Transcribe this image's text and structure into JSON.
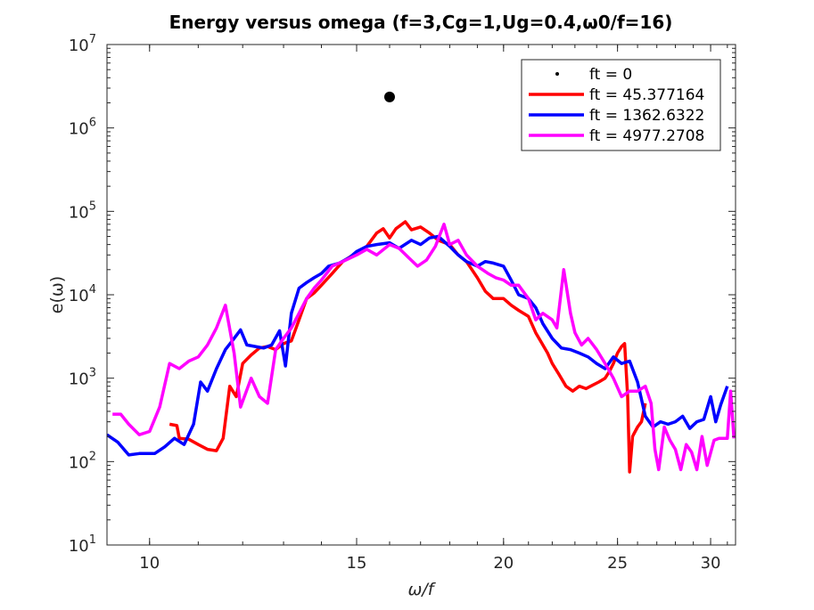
{
  "chart_data": {
    "type": "line",
    "title": "Energy versus omega (f=3,Cg=1,Ug=0.4,ω0/f=16)",
    "xlabel": "ω/f",
    "ylabel": "e(ω)",
    "xscale": "log",
    "yscale": "log",
    "xlim": [
      9.2,
      31.5
    ],
    "ylim": [
      10,
      10000000
    ],
    "xticks": [
      10,
      15,
      20,
      25,
      30
    ],
    "yticks": [
      {
        "value": 10,
        "base": "10",
        "exp": "1"
      },
      {
        "value": 100,
        "base": "10",
        "exp": "2"
      },
      {
        "value": 1000,
        "base": "10",
        "exp": "3"
      },
      {
        "value": 10000,
        "base": "10",
        "exp": "4"
      },
      {
        "value": 100000,
        "base": "10",
        "exp": "5"
      },
      {
        "value": 1000000,
        "base": "10",
        "exp": "6"
      },
      {
        "value": 10000000,
        "base": "10",
        "exp": "7"
      }
    ],
    "legend_position": "top-right",
    "grid": false,
    "series": [
      {
        "name": "ft = 0",
        "color": "#000000",
        "style": "point",
        "points": [
          [
            16.0,
            2350000
          ]
        ]
      },
      {
        "name": "ft = 45.377164",
        "color": "#ff0000",
        "style": "line",
        "points": [
          [
            10.4,
            280
          ],
          [
            10.55,
            270
          ],
          [
            10.6,
            190
          ],
          [
            10.8,
            185
          ],
          [
            11.0,
            160
          ],
          [
            11.2,
            140
          ],
          [
            11.4,
            135
          ],
          [
            11.55,
            190
          ],
          [
            11.7,
            800
          ],
          [
            11.85,
            600
          ],
          [
            12.0,
            1500
          ],
          [
            12.2,
            1900
          ],
          [
            12.4,
            2300
          ],
          [
            12.6,
            2400
          ],
          [
            12.8,
            2200
          ],
          [
            13.0,
            2600
          ],
          [
            13.2,
            2800
          ],
          [
            13.4,
            5000
          ],
          [
            13.6,
            9000
          ],
          [
            13.8,
            10500
          ],
          [
            14.0,
            13000
          ],
          [
            14.3,
            18000
          ],
          [
            14.6,
            25000
          ],
          [
            15.0,
            32000
          ],
          [
            15.3,
            38000
          ],
          [
            15.6,
            55000
          ],
          [
            15.8,
            62000
          ],
          [
            16.0,
            48000
          ],
          [
            16.2,
            62000
          ],
          [
            16.5,
            75000
          ],
          [
            16.7,
            60000
          ],
          [
            17.0,
            65000
          ],
          [
            17.3,
            55000
          ],
          [
            17.6,
            45000
          ],
          [
            18.0,
            40000
          ],
          [
            18.3,
            30000
          ],
          [
            18.6,
            25000
          ],
          [
            19.0,
            16000
          ],
          [
            19.3,
            11000
          ],
          [
            19.6,
            9000
          ],
          [
            20.0,
            9000
          ],
          [
            20.3,
            7500
          ],
          [
            20.6,
            6500
          ],
          [
            21.0,
            5500
          ],
          [
            21.3,
            3500
          ],
          [
            21.5,
            2800
          ],
          [
            21.8,
            2000
          ],
          [
            22.0,
            1500
          ],
          [
            22.3,
            1100
          ],
          [
            22.6,
            800
          ],
          [
            22.9,
            700
          ],
          [
            23.2,
            800
          ],
          [
            23.5,
            750
          ],
          [
            23.8,
            820
          ],
          [
            24.1,
            900
          ],
          [
            24.4,
            1000
          ],
          [
            24.6,
            1200
          ],
          [
            24.8,
            1500
          ],
          [
            25.0,
            2000
          ],
          [
            25.2,
            2400
          ],
          [
            25.35,
            2600
          ],
          [
            25.5,
            600
          ],
          [
            25.6,
            75
          ],
          [
            25.75,
            200
          ],
          [
            26.0,
            260
          ],
          [
            26.2,
            300
          ],
          [
            26.4,
            500
          ]
        ]
      },
      {
        "name": "ft = 1362.6322",
        "color": "#0000ff",
        "style": "line",
        "points": [
          [
            9.2,
            210
          ],
          [
            9.4,
            170
          ],
          [
            9.6,
            120
          ],
          [
            9.8,
            125
          ],
          [
            10.1,
            125
          ],
          [
            10.3,
            150
          ],
          [
            10.5,
            190
          ],
          [
            10.7,
            160
          ],
          [
            10.9,
            280
          ],
          [
            11.05,
            900
          ],
          [
            11.2,
            700
          ],
          [
            11.4,
            1300
          ],
          [
            11.6,
            2200
          ],
          [
            11.8,
            3000
          ],
          [
            11.95,
            3800
          ],
          [
            12.1,
            2500
          ],
          [
            12.3,
            2400
          ],
          [
            12.5,
            2300
          ],
          [
            12.7,
            2500
          ],
          [
            12.9,
            3700
          ],
          [
            13.05,
            1400
          ],
          [
            13.2,
            6000
          ],
          [
            13.4,
            12000
          ],
          [
            13.6,
            14000
          ],
          [
            13.8,
            16000
          ],
          [
            14.0,
            18000
          ],
          [
            14.2,
            22000
          ],
          [
            14.5,
            24000
          ],
          [
            14.8,
            28000
          ],
          [
            15.0,
            33000
          ],
          [
            15.3,
            38000
          ],
          [
            15.6,
            40000
          ],
          [
            16.0,
            42000
          ],
          [
            16.3,
            36000
          ],
          [
            16.7,
            45000
          ],
          [
            17.0,
            40000
          ],
          [
            17.3,
            48000
          ],
          [
            17.6,
            50000
          ],
          [
            18.0,
            38000
          ],
          [
            18.3,
            30000
          ],
          [
            18.6,
            25000
          ],
          [
            19.0,
            22000
          ],
          [
            19.3,
            25000
          ],
          [
            19.6,
            24000
          ],
          [
            20.0,
            22000
          ],
          [
            20.3,
            15000
          ],
          [
            20.6,
            10000
          ],
          [
            21.0,
            9000
          ],
          [
            21.3,
            7000
          ],
          [
            21.6,
            4500
          ],
          [
            22.0,
            3000
          ],
          [
            22.4,
            2300
          ],
          [
            22.8,
            2200
          ],
          [
            23.2,
            2000
          ],
          [
            23.6,
            1800
          ],
          [
            24.0,
            1500
          ],
          [
            24.4,
            1300
          ],
          [
            24.8,
            1800
          ],
          [
            25.2,
            1500
          ],
          [
            25.6,
            1600
          ],
          [
            26.0,
            900
          ],
          [
            26.4,
            350
          ],
          [
            26.8,
            260
          ],
          [
            27.2,
            300
          ],
          [
            27.6,
            280
          ],
          [
            28.0,
            300
          ],
          [
            28.4,
            350
          ],
          [
            28.8,
            250
          ],
          [
            29.2,
            300
          ],
          [
            29.6,
            320
          ],
          [
            30.0,
            600
          ],
          [
            30.3,
            300
          ],
          [
            30.6,
            480
          ],
          [
            31.0,
            800
          ]
        ]
      },
      {
        "name": "ft = 4977.2708",
        "color": "#ff00ff",
        "style": "line",
        "points": [
          [
            9.3,
            370
          ],
          [
            9.45,
            370
          ],
          [
            9.6,
            280
          ],
          [
            9.8,
            210
          ],
          [
            10.0,
            230
          ],
          [
            10.2,
            450
          ],
          [
            10.4,
            1500
          ],
          [
            10.6,
            1300
          ],
          [
            10.8,
            1600
          ],
          [
            11.0,
            1800
          ],
          [
            11.2,
            2500
          ],
          [
            11.4,
            4000
          ],
          [
            11.6,
            7500
          ],
          [
            11.8,
            2000
          ],
          [
            11.95,
            450
          ],
          [
            12.2,
            1000
          ],
          [
            12.4,
            600
          ],
          [
            12.6,
            500
          ],
          [
            12.8,
            2200
          ],
          [
            13.0,
            3000
          ],
          [
            13.2,
            4000
          ],
          [
            13.4,
            6000
          ],
          [
            13.6,
            9000
          ],
          [
            13.8,
            12000
          ],
          [
            14.0,
            15000
          ],
          [
            14.3,
            22000
          ],
          [
            14.6,
            25000
          ],
          [
            15.0,
            30000
          ],
          [
            15.3,
            35000
          ],
          [
            15.6,
            30000
          ],
          [
            16.0,
            40000
          ],
          [
            16.3,
            36000
          ],
          [
            16.6,
            28000
          ],
          [
            16.9,
            22000
          ],
          [
            17.2,
            26000
          ],
          [
            17.5,
            38000
          ],
          [
            17.8,
            70000
          ],
          [
            18.0,
            40000
          ],
          [
            18.3,
            45000
          ],
          [
            18.6,
            30000
          ],
          [
            19.0,
            22000
          ],
          [
            19.4,
            18000
          ],
          [
            19.7,
            16000
          ],
          [
            20.0,
            15000
          ],
          [
            20.3,
            13000
          ],
          [
            20.6,
            13000
          ],
          [
            21.0,
            9000
          ],
          [
            21.3,
            5000
          ],
          [
            21.6,
            6000
          ],
          [
            22.0,
            5000
          ],
          [
            22.2,
            4000
          ],
          [
            22.5,
            20000
          ],
          [
            22.8,
            6000
          ],
          [
            23.0,
            3500
          ],
          [
            23.3,
            2500
          ],
          [
            23.6,
            3000
          ],
          [
            24.0,
            2200
          ],
          [
            24.4,
            1500
          ],
          [
            24.8,
            1000
          ],
          [
            25.2,
            600
          ],
          [
            25.6,
            700
          ],
          [
            26.0,
            700
          ],
          [
            26.4,
            800
          ],
          [
            26.7,
            500
          ],
          [
            26.9,
            140
          ],
          [
            27.1,
            80
          ],
          [
            27.4,
            260
          ],
          [
            27.7,
            180
          ],
          [
            28.0,
            140
          ],
          [
            28.3,
            80
          ],
          [
            28.6,
            160
          ],
          [
            28.9,
            130
          ],
          [
            29.2,
            80
          ],
          [
            29.5,
            200
          ],
          [
            29.8,
            90
          ],
          [
            30.2,
            180
          ],
          [
            30.5,
            190
          ],
          [
            30.8,
            190
          ],
          [
            31.0,
            190
          ],
          [
            31.2,
            700
          ],
          [
            31.4,
            190
          ]
        ]
      }
    ]
  }
}
